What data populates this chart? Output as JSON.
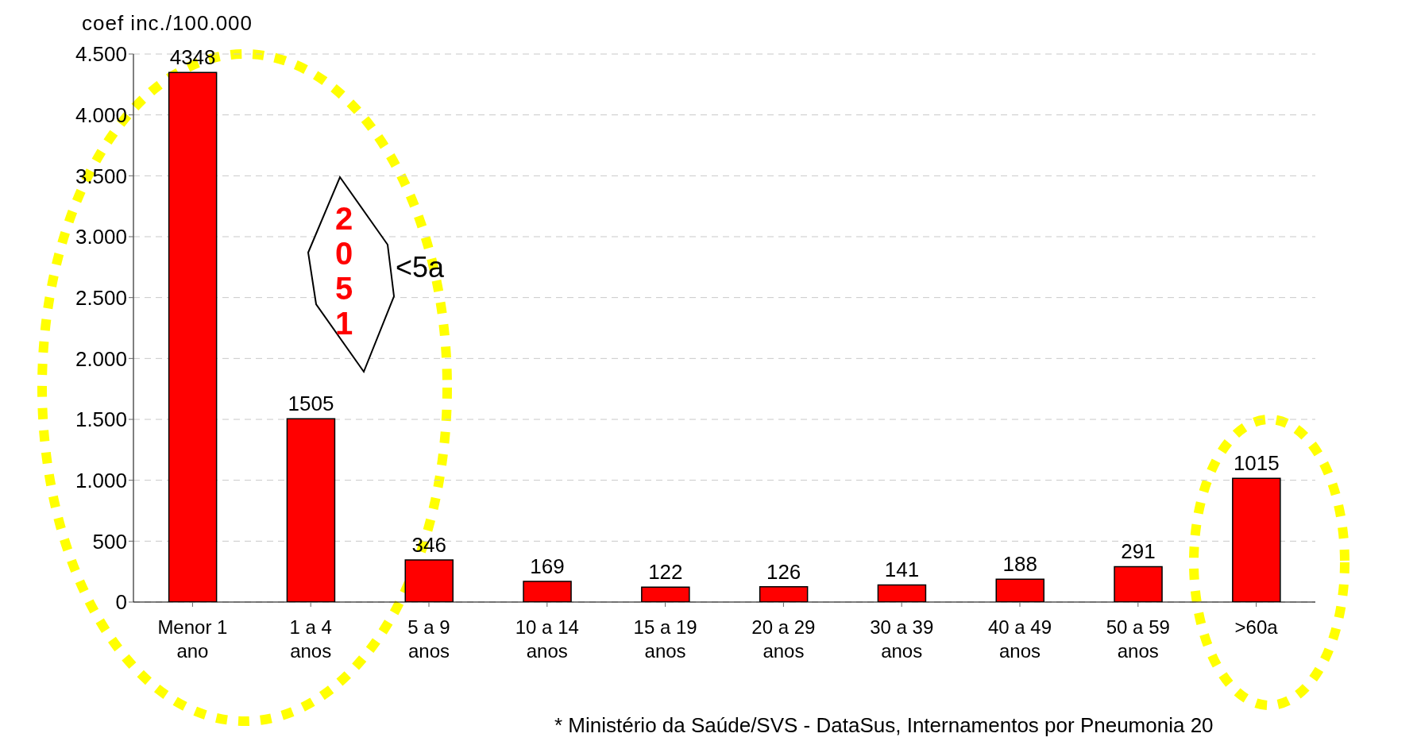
{
  "chart_data": {
    "type": "bar",
    "ylabel": "coef inc./100.000",
    "categories": [
      "Menor 1 ano",
      "1 a 4 anos",
      "5 a 9 anos",
      "10 a 14 anos",
      "15 a 19 anos",
      "20 a 29 anos",
      "30 a 39 anos",
      "40 a 49 anos",
      "50 a 59 anos",
      ">60a"
    ],
    "values": [
      4348,
      1505,
      346,
      169,
      122,
      126,
      141,
      188,
      291,
      1015
    ],
    "color": "#ff0000",
    "ylim": [
      0,
      4500
    ],
    "yticks": [
      0,
      {
        "value": 500,
        "label": "500"
      },
      {
        "value": 1000,
        "label": "1.000"
      },
      {
        "value": 1500,
        "label": "1.500"
      },
      {
        "value": 2000,
        "label": "2.000"
      },
      {
        "value": 2500,
        "label": "2.500"
      },
      {
        "value": 3000,
        "label": "3.000"
      },
      {
        "value": 3500,
        "label": "3.500"
      },
      {
        "value": 4000,
        "label": "4.000"
      },
      {
        "value": 4500,
        "label": "4.500"
      }
    ],
    "grid": "y",
    "data_labels": true,
    "annotations": [
      "2051",
      "<5a",
      "* Ministério da Saúde/SVS - DataSus, Internamentos por Pneumonia 20"
    ]
  }
}
